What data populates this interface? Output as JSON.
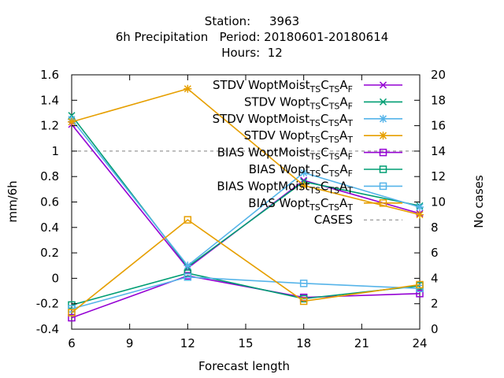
{
  "header": {
    "title_line1": "Station:     3963",
    "title_line2": "6h Precipitation   Period: 20180601-20180614",
    "title_line3": "Hours:  12"
  },
  "chart_data": {
    "type": "line",
    "xlabel": "Forecast length",
    "ylabel": "mm/6h",
    "y2label": "No cases",
    "xlim": [
      6,
      24
    ],
    "ylim": [
      -0.4,
      1.6
    ],
    "y2lim": [
      0,
      20
    ],
    "x_ticks": [
      6,
      9,
      12,
      15,
      18,
      21,
      24
    ],
    "y_ticks": [
      -0.4,
      -0.2,
      0,
      0.2,
      0.4,
      0.6,
      0.8,
      1,
      1.2,
      1.4,
      1.6
    ],
    "y_tick_labels": [
      "-0.4",
      "-0.2",
      "0",
      "0.2",
      "0.4",
      "0.6",
      "0.8",
      "1",
      "1.2",
      "1.4",
      "1.6"
    ],
    "y2_ticks": [
      0,
      2,
      4,
      6,
      8,
      10,
      12,
      14,
      16,
      18,
      20
    ],
    "legend_position": "top-right",
    "x": [
      6,
      12,
      18,
      24
    ],
    "series": [
      {
        "prefix": "STDV WoptMoist",
        "sub1": "TS",
        "mid": "C",
        "sub2": "TS",
        "end": "A",
        "sub3": "F",
        "color": "#9400d3",
        "marker": "x",
        "values": [
          1.21,
          0.08,
          0.77,
          0.51
        ]
      },
      {
        "prefix": "STDV Wopt",
        "sub1": "TS",
        "mid": "C",
        "sub2": "TS",
        "end": "A",
        "sub3": "F",
        "color": "#009e73",
        "marker": "x",
        "values": [
          1.28,
          0.09,
          0.76,
          0.57
        ]
      },
      {
        "prefix": "STDV WoptMoist",
        "sub1": "TS",
        "mid": "C",
        "sub2": "TS",
        "end": "A",
        "sub3": "T",
        "color": "#56b4e9",
        "marker": "star",
        "values": [
          1.25,
          0.1,
          0.83,
          0.56
        ]
      },
      {
        "prefix": "STDV Wopt",
        "sub1": "TS",
        "mid": "C",
        "sub2": "TS",
        "end": "A",
        "sub3": "T",
        "color": "#e69f00",
        "marker": "star",
        "values": [
          1.23,
          1.49,
          0.73,
          0.5
        ]
      },
      {
        "prefix": "BIAS WoptMoist",
        "sub1": "TS",
        "mid": "C",
        "sub2": "TS",
        "end": "A",
        "sub3": "F",
        "color": "#9400d3",
        "marker": "square",
        "values": [
          -0.31,
          0.02,
          -0.15,
          -0.12
        ]
      },
      {
        "prefix": "BIAS Wopt",
        "sub1": "TS",
        "mid": "C",
        "sub2": "TS",
        "end": "A",
        "sub3": "F",
        "color": "#009e73",
        "marker": "square",
        "values": [
          -0.21,
          0.04,
          -0.16,
          -0.06
        ]
      },
      {
        "prefix": "BIAS WoptMoist",
        "sub1": "TS",
        "mid": "C",
        "sub2": "TS",
        "end": "A",
        "sub3": "T",
        "color": "#56b4e9",
        "marker": "square",
        "values": [
          -0.24,
          0.01,
          -0.04,
          -0.08
        ]
      },
      {
        "prefix": "BIAS Wopt",
        "sub1": "TS",
        "mid": "C",
        "sub2": "TS",
        "end": "A",
        "sub3": "T",
        "color": "#e69f00",
        "marker": "square",
        "values": [
          -0.27,
          0.46,
          -0.18,
          -0.05
        ]
      }
    ],
    "cases": {
      "name": "CASES",
      "color": "#808080",
      "values": [
        14,
        14,
        14,
        14
      ]
    }
  }
}
